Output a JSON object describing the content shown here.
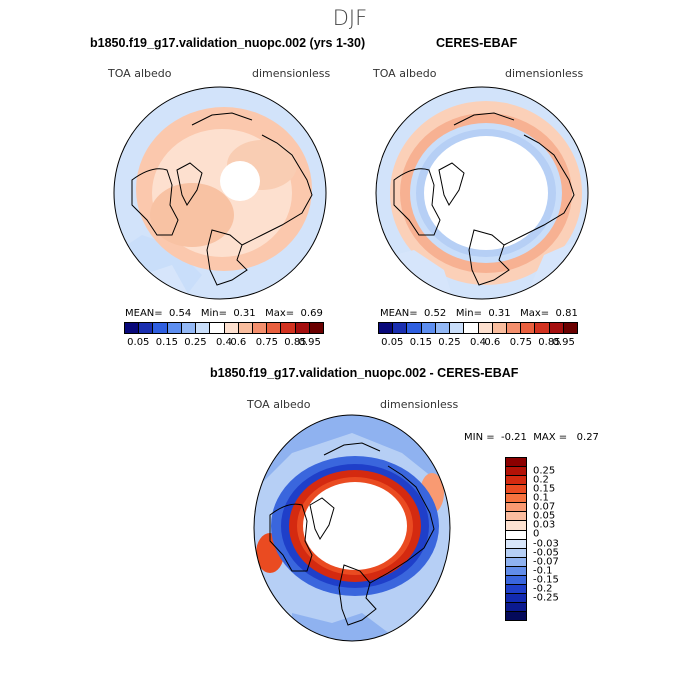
{
  "figure": {
    "season": "DJF"
  },
  "panels": [
    {
      "title": "b1850.f19_g17.validation_nuopc.002 (yrs 1-30)",
      "variable": "TOA albedo",
      "units": "dimensionless",
      "stats": {
        "mean_label": "MEAN=",
        "mean": "0.54",
        "min_label": "Min=",
        "min": "0.31",
        "max_label": "Max=",
        "max": "0.69"
      }
    },
    {
      "title": "CERES-EBAF",
      "variable": "TOA albedo",
      "units": "dimensionless",
      "stats": {
        "mean_label": "MEAN=",
        "mean": "0.52",
        "min_label": "Min=",
        "min": "0.31",
        "max_label": "Max=",
        "max": "0.81"
      }
    },
    {
      "title": "b1850.f19_g17.validation_nuopc.002 - CERES-EBAF",
      "variable": "TOA albedo",
      "units": "dimensionless",
      "stats": {
        "min_label": "MIN =",
        "min": "-0.21",
        "max_label": "MAX =",
        "max": "0.27"
      }
    }
  ],
  "colorbars": {
    "absolute": {
      "tick_labels": [
        "0.05",
        "0.15",
        "0.25",
        "0.4",
        "0.6",
        "0.75",
        "0.85",
        "0.95"
      ],
      "colors": [
        "#08087a",
        "#1a2fb0",
        "#2f5fe0",
        "#5d8ef0",
        "#93b8f5",
        "#c9defa",
        "#ffffff",
        "#fde0cf",
        "#f9bd9e",
        "#f48f6d",
        "#e9603f",
        "#d23220",
        "#a50f0f",
        "#6b0000"
      ]
    },
    "difference": {
      "tick_labels": [
        "0.25",
        "0.2",
        "0.15",
        "0.1",
        "0.07",
        "0.05",
        "0.03",
        "0",
        "-0.03",
        "-0.05",
        "-0.07",
        "-0.1",
        "-0.15",
        "-0.2",
        "-0.25"
      ],
      "colors": [
        "#8b0000",
        "#b31207",
        "#d42a10",
        "#ea4b21",
        "#f6733f",
        "#f99a72",
        "#fbbd9f",
        "#fde2d1",
        "#ffffff",
        "#d8e6fa",
        "#b6cff5",
        "#8fb2f0",
        "#628de9",
        "#3a66dd",
        "#1f3fc9",
        "#122ab0",
        "#0b1a8f",
        "#040a5a"
      ]
    }
  },
  "colors": {
    "land_outline": "#000000",
    "missing": "#ffffff"
  }
}
